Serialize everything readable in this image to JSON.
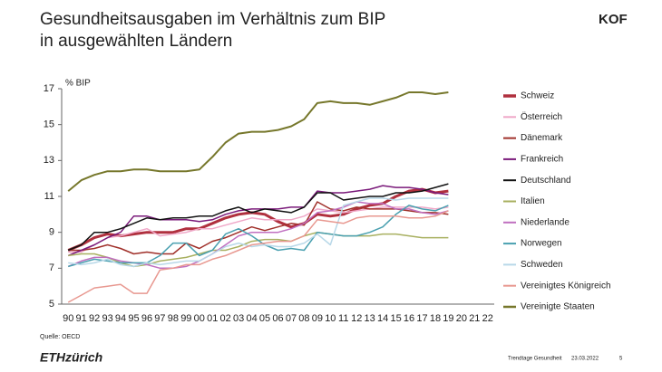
{
  "slide": {
    "title_lines": [
      "Gesundheitsausgaben im Verhältnis zum BIP",
      "in ausgewählten Ländern"
    ],
    "logo": "KOF",
    "source": "Quelle: OECD",
    "brand": "ETHzürich",
    "footer": [
      "Trendtage Gesundheit",
      "23.03.2022",
      "5"
    ]
  },
  "chart_data": {
    "type": "line",
    "ylabel": "% BIP",
    "categories": [
      "90",
      "91",
      "92",
      "93",
      "94",
      "95",
      "96",
      "97",
      "98",
      "99",
      "00",
      "01",
      "02",
      "03",
      "04",
      "05",
      "06",
      "07",
      "08",
      "09",
      "10",
      "11",
      "12",
      "13",
      "14",
      "15",
      "16",
      "17",
      "18",
      "19",
      "20",
      "21",
      "22"
    ],
    "ylim": [
      5,
      17
    ],
    "yticks": [
      5,
      7,
      9,
      11,
      13,
      15,
      17
    ],
    "series": [
      {
        "name": "Schweiz",
        "color": "#b0303e",
        "width": 3,
        "values": [
          8.0,
          8.3,
          8.7,
          8.9,
          8.8,
          8.9,
          9.0,
          9.0,
          9.0,
          9.2,
          9.2,
          9.5,
          9.8,
          10.0,
          10.1,
          10.0,
          9.6,
          9.3,
          9.5,
          10.0,
          9.9,
          10.0,
          10.3,
          10.5,
          10.6,
          11.0,
          11.3,
          11.4,
          11.2,
          11.3,
          null,
          null,
          null
        ]
      },
      {
        "name": "Österreich",
        "color": "#f0a8c8",
        "width": 1.5,
        "values": [
          7.9,
          7.9,
          8.3,
          8.7,
          8.8,
          9.0,
          9.2,
          8.8,
          8.9,
          9.0,
          9.2,
          9.2,
          9.4,
          9.6,
          9.8,
          9.7,
          9.7,
          9.7,
          9.9,
          10.3,
          10.2,
          10.1,
          10.2,
          10.3,
          10.4,
          10.4,
          10.4,
          10.4,
          10.3,
          10.4,
          null,
          null,
          null
        ]
      },
      {
        "name": "Dänemark",
        "color": "#a0302a",
        "width": 1.5,
        "values": [
          8.0,
          8.0,
          8.1,
          8.3,
          8.1,
          7.8,
          7.9,
          7.8,
          7.8,
          8.4,
          8.1,
          8.5,
          8.7,
          9.0,
          9.3,
          9.1,
          9.3,
          9.5,
          9.4,
          10.7,
          10.3,
          10.2,
          10.4,
          10.3,
          10.3,
          10.3,
          10.2,
          10.1,
          10.1,
          10.0,
          null,
          null,
          null
        ]
      },
      {
        "name": "Frankreich",
        "color": "#7a1a7a",
        "width": 1.5,
        "values": [
          7.7,
          8.0,
          8.3,
          8.7,
          9.0,
          9.9,
          9.9,
          9.7,
          9.7,
          9.7,
          9.6,
          9.7,
          10.0,
          10.2,
          10.3,
          10.3,
          10.3,
          10.4,
          10.4,
          11.3,
          11.2,
          11.2,
          11.3,
          11.4,
          11.6,
          11.5,
          11.5,
          11.4,
          11.2,
          11.1,
          null,
          null,
          null
        ]
      },
      {
        "name": "Deutschland",
        "color": "#111111",
        "width": 1.5,
        "values": [
          8.0,
          8.3,
          9.0,
          9.0,
          9.2,
          9.5,
          9.8,
          9.7,
          9.8,
          9.8,
          9.9,
          9.9,
          10.2,
          10.4,
          10.1,
          10.3,
          10.2,
          10.1,
          10.4,
          11.2,
          11.2,
          10.8,
          10.9,
          11.0,
          11.0,
          11.2,
          11.2,
          11.3,
          11.5,
          11.7,
          null,
          null,
          null
        ]
      },
      {
        "name": "Italien",
        "color": "#a8b060",
        "width": 1.5,
        "values": [
          7.7,
          7.8,
          7.8,
          7.6,
          7.3,
          7.1,
          7.2,
          7.4,
          7.5,
          7.6,
          7.8,
          8.0,
          8.0,
          8.2,
          8.5,
          8.6,
          8.6,
          8.5,
          8.8,
          9.0,
          8.9,
          8.8,
          8.8,
          8.8,
          8.9,
          8.9,
          8.8,
          8.7,
          8.7,
          8.7,
          null,
          null,
          null
        ]
      },
      {
        "name": "Niederlande",
        "color": "#c070c0",
        "width": 1.5,
        "values": [
          7.1,
          7.4,
          7.6,
          7.6,
          7.4,
          7.3,
          7.2,
          7.0,
          7.0,
          7.1,
          7.4,
          7.8,
          8.3,
          8.8,
          9.0,
          9.0,
          9.0,
          9.2,
          9.5,
          10.1,
          10.2,
          10.4,
          10.7,
          10.6,
          10.6,
          10.3,
          10.3,
          10.1,
          10.0,
          10.2,
          null,
          null,
          null
        ]
      },
      {
        "name": "Norwegen",
        "color": "#4aa0b0",
        "width": 1.5,
        "values": [
          7.1,
          7.3,
          7.5,
          7.4,
          7.3,
          7.3,
          7.3,
          7.7,
          8.4,
          8.4,
          7.7,
          8.0,
          8.9,
          9.2,
          8.8,
          8.3,
          8.0,
          8.1,
          8.0,
          9.0,
          8.9,
          8.8,
          8.8,
          9.0,
          9.3,
          10.0,
          10.5,
          10.3,
          10.2,
          10.5,
          null,
          null,
          null
        ]
      },
      {
        "name": "Schweden",
        "color": "#b8d8e8",
        "width": 1.5,
        "values": [
          7.3,
          7.2,
          7.3,
          7.5,
          7.2,
          7.1,
          7.3,
          7.2,
          7.3,
          7.4,
          7.4,
          7.8,
          8.2,
          8.4,
          8.2,
          8.3,
          8.2,
          8.2,
          8.4,
          8.9,
          8.3,
          10.5,
          10.7,
          10.9,
          10.9,
          10.8,
          10.9,
          10.9,
          10.9,
          10.9,
          null,
          null,
          null
        ]
      },
      {
        "name": "Vereinigtes Königreich",
        "color": "#e89890",
        "width": 1.5,
        "values": [
          5.1,
          5.5,
          5.9,
          6.0,
          6.1,
          5.6,
          5.6,
          6.9,
          7.0,
          7.2,
          7.2,
          7.5,
          7.7,
          8.0,
          8.3,
          8.4,
          8.5,
          8.5,
          8.8,
          9.7,
          9.6,
          9.5,
          9.8,
          9.9,
          9.9,
          9.9,
          9.8,
          9.8,
          9.9,
          10.2,
          null,
          null,
          null
        ]
      },
      {
        "name": "Vereinigte Staaten",
        "color": "#76772b",
        "width": 2,
        "values": [
          11.3,
          11.9,
          12.2,
          12.4,
          12.4,
          12.5,
          12.5,
          12.4,
          12.4,
          12.4,
          12.5,
          13.2,
          14.0,
          14.5,
          14.6,
          14.6,
          14.7,
          14.9,
          15.3,
          16.2,
          16.3,
          16.2,
          16.2,
          16.1,
          16.3,
          16.5,
          16.8,
          16.8,
          16.7,
          16.8,
          null,
          null,
          null
        ]
      }
    ]
  }
}
